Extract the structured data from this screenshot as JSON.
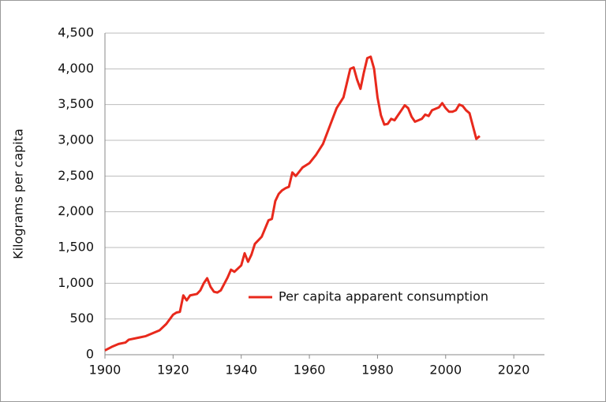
{
  "chart_data": {
    "type": "line",
    "y_label": "Kilograms per capita",
    "x": [
      1900,
      1902,
      1904,
      1906,
      1907,
      1910,
      1912,
      1914,
      1916,
      1918,
      1920,
      1921,
      1922,
      1923,
      1924,
      1925,
      1927,
      1928,
      1929,
      1930,
      1931,
      1932,
      1933,
      1934,
      1936,
      1937,
      1938,
      1940,
      1941,
      1942,
      1943,
      1944,
      1946,
      1948,
      1949,
      1950,
      1951,
      1952,
      1953,
      1954,
      1955,
      1956,
      1957,
      1958,
      1960,
      1962,
      1964,
      1966,
      1968,
      1970,
      1972,
      1973,
      1974,
      1975,
      1976,
      1977,
      1978,
      1979,
      1980,
      1981,
      1982,
      1983,
      1984,
      1985,
      1986,
      1987,
      1988,
      1989,
      1990,
      1991,
      1992,
      1993,
      1994,
      1995,
      1996,
      1998,
      1999,
      2000,
      2001,
      2002,
      2003,
      2004,
      2005,
      2006,
      2007,
      2008,
      2009,
      2010
    ],
    "series": [
      {
        "name": "Per capita apparent consumption",
        "color": "#e8291c",
        "values": [
          60,
          110,
          150,
          170,
          210,
          240,
          260,
          300,
          340,
          430,
          560,
          590,
          600,
          830,
          760,
          830,
          850,
          900,
          1000,
          1070,
          950,
          880,
          870,
          900,
          1080,
          1190,
          1160,
          1250,
          1420,
          1300,
          1400,
          1550,
          1650,
          1880,
          1900,
          2150,
          2250,
          2300,
          2330,
          2350,
          2550,
          2500,
          2560,
          2620,
          2680,
          2800,
          2950,
          3200,
          3450,
          3600,
          4000,
          4020,
          3850,
          3720,
          3950,
          4150,
          4170,
          4000,
          3600,
          3350,
          3220,
          3230,
          3300,
          3280,
          3350,
          3420,
          3490,
          3450,
          3330,
          3260,
          3280,
          3300,
          3360,
          3340,
          3420,
          3460,
          3520,
          3450,
          3400,
          3400,
          3420,
          3500,
          3480,
          3420,
          3380,
          3200,
          3020,
          3060
        ]
      }
    ],
    "xlim": [
      1900,
      2029
    ],
    "xticks": [
      1900,
      1920,
      1940,
      1960,
      1980,
      2000,
      2020
    ],
    "ylim": [
      0,
      4500
    ],
    "yticks": [
      0,
      500,
      {
        "value": 1000,
        "label": "1,000"
      },
      {
        "value": 1500,
        "label": "1,500"
      },
      {
        "value": 2000,
        "label": "2,000"
      },
      {
        "value": 2500,
        "label": "2,500"
      },
      {
        "value": 3000,
        "label": "3,000"
      },
      {
        "value": 3500,
        "label": "3,500"
      },
      {
        "value": 4000,
        "label": "4,000"
      },
      {
        "value": 4500,
        "label": "4,500"
      }
    ],
    "grid": true,
    "legend": "center"
  }
}
